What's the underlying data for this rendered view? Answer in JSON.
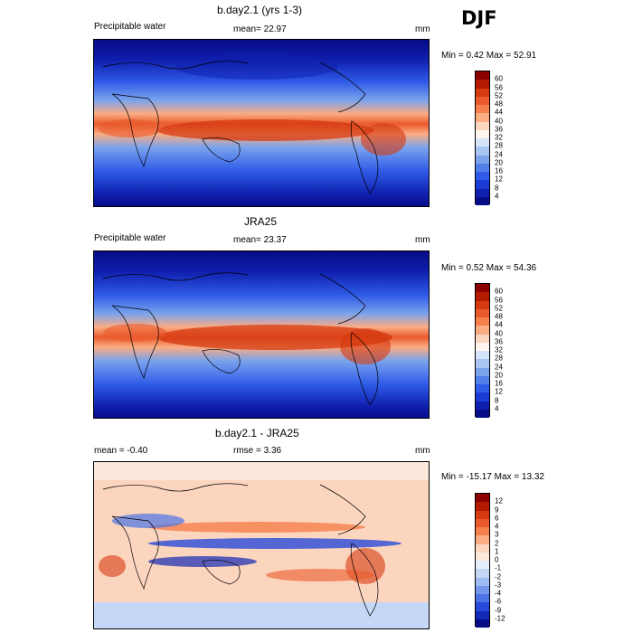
{
  "season": "DJF",
  "panels": [
    {
      "title": "b.day2.1 (yrs 1-3)",
      "left_label": "Precipitable water",
      "center_label": "mean=  22.97",
      "units": "mm",
      "minmax": "Min =   0.42 Max =  52.91",
      "colorbar_labels": [
        "60",
        "56",
        "52",
        "48",
        "44",
        "40",
        "36",
        "32",
        "28",
        "24",
        "20",
        "16",
        "12",
        "8",
        "4"
      ]
    },
    {
      "title": "JRA25",
      "left_label": "Precipitable water",
      "center_label": "mean=  23.37",
      "units": "mm",
      "minmax": "Min =   0.52 Max =  54.36",
      "colorbar_labels": [
        "60",
        "56",
        "52",
        "48",
        "44",
        "40",
        "36",
        "32",
        "28",
        "24",
        "20",
        "16",
        "12",
        "8",
        "4"
      ]
    },
    {
      "title": "b.day2.1 - JRA25",
      "left_label": "mean =  -0.40",
      "center_label": "rmse =   3.36",
      "units": "mm",
      "minmax": "Min = -15.17 Max =  13.32",
      "colorbar_labels": [
        "12",
        "9",
        "6",
        "4",
        "3",
        "2",
        "1",
        "0",
        "-1",
        "-2",
        "-3",
        "-4",
        "-6",
        "-9",
        "-12"
      ]
    }
  ],
  "colors": {
    "abs_scale": [
      "#8c0000",
      "#b21b00",
      "#d63a10",
      "#e95a2c",
      "#f5804e",
      "#fbac83",
      "#fcd5be",
      "#fff5ee",
      "#d6e4f9",
      "#a9c5f3",
      "#7aa3ec",
      "#5280ea",
      "#2f5be8",
      "#1c3bd5",
      "#0f1fae",
      "#070c87"
    ],
    "diff_scale": [
      "#8c0000",
      "#b21b00",
      "#d63a10",
      "#e95a2c",
      "#f5804e",
      "#fbac83",
      "#fcd5be",
      "#fde9dc",
      "#e6eefb",
      "#c5d7f6",
      "#9dbbf0",
      "#7398eb",
      "#4c73e6",
      "#284ad8",
      "#1328b4",
      "#070c87"
    ]
  }
}
